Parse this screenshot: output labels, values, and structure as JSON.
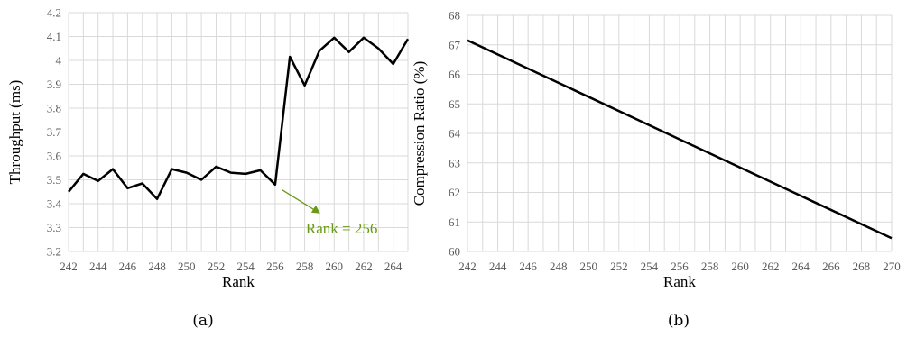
{
  "chart_data": [
    {
      "type": "line",
      "caption": "(a)",
      "xlabel": "Rank",
      "ylabel": "Throughput (ms)",
      "xlim": [
        242,
        265
      ],
      "ylim": [
        3.2,
        4.2
      ],
      "x_ticks": [
        "242",
        "244",
        "246",
        "248",
        "250",
        "252",
        "254",
        "256",
        "258",
        "260",
        "262",
        "264"
      ],
      "y_ticks": [
        "3.2",
        "3.3",
        "3.4",
        "3.5",
        "3.6",
        "3.7",
        "3.8",
        "3.9",
        "4",
        "4.1",
        "4.2"
      ],
      "grid": true,
      "x": [
        242,
        243,
        244,
        245,
        246,
        247,
        248,
        249,
        250,
        251,
        252,
        253,
        254,
        255,
        256,
        257,
        258,
        259,
        260,
        261,
        262,
        263,
        264,
        265
      ],
      "series": [
        {
          "values": [
            3.45,
            3.525,
            3.495,
            3.545,
            3.465,
            3.485,
            3.42,
            3.545,
            3.53,
            3.5,
            3.555,
            3.53,
            3.525,
            3.54,
            3.48,
            4.015,
            3.895,
            4.04,
            4.095,
            4.035,
            4.095,
            4.05,
            3.985,
            4.09
          ]
        }
      ],
      "annotation": {
        "text": "Rank = 256",
        "x": 256,
        "y": 3.48,
        "color": "#6a9a16"
      }
    },
    {
      "type": "line",
      "caption": "(b)",
      "xlabel": "Rank",
      "ylabel": "Compression Ratio (%)",
      "xlim": [
        242,
        270
      ],
      "ylim": [
        60,
        68
      ],
      "x_ticks": [
        "242",
        "244",
        "246",
        "248",
        "250",
        "252",
        "254",
        "256",
        "258",
        "260",
        "262",
        "264",
        "266",
        "268",
        "270"
      ],
      "y_ticks": [
        "60",
        "61",
        "62",
        "63",
        "64",
        "65",
        "66",
        "67",
        "68"
      ],
      "grid": true,
      "x": [
        242,
        270
      ],
      "series": [
        {
          "values": [
            67.15,
            60.45
          ]
        }
      ]
    }
  ]
}
